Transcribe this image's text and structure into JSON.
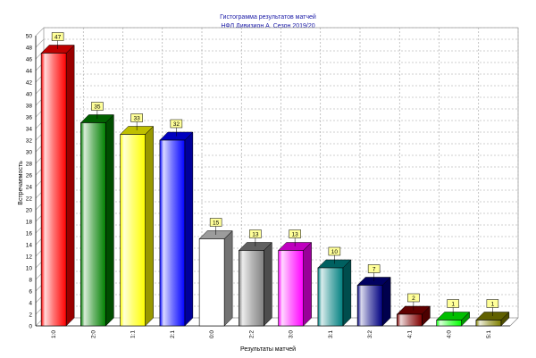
{
  "chart_data": {
    "type": "bar",
    "title": "Гистограмма результатов матчей",
    "subtitle": "НФЛ Дивизион А. Сезон 2019/20",
    "xlabel": "Результаты матчей",
    "ylabel": "Встречаемость",
    "ylim": [
      0,
      50
    ],
    "ytick_step": 2,
    "grid": true,
    "categories": [
      "1:0",
      "2:0",
      "1:1",
      "2:1",
      "0:0",
      "2:2",
      "3:0",
      "3:1",
      "3:2",
      "4:1",
      "4:0",
      "5:1"
    ],
    "values": [
      47,
      35,
      33,
      32,
      15,
      13,
      13,
      10,
      7,
      2,
      1,
      1
    ],
    "colors": [
      "#ff0000",
      "#008000",
      "#ffff00",
      "#0000ff",
      "#ffffff",
      "#808080",
      "#ff00ff",
      "#008080",
      "#000080",
      "#800000",
      "#00ff00",
      "#808000"
    ],
    "label_box_color": "#ffff99"
  }
}
